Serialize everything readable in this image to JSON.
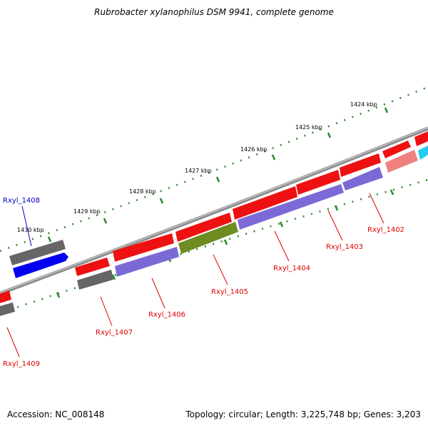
{
  "title": "Rubrobacter xylanophilus DSM 9941, complete genome",
  "footer": {
    "accession": "Accession: NC_008148",
    "summary": "Topology: circular; Length: 3,225,748 bp; Genes: 3,203"
  },
  "scale_labels": [
    "1424 kbp",
    "1425 kbp",
    "1426 kbp",
    "1427 kbp",
    "1428 kbp",
    "1429 kbp",
    "1430 kbp"
  ],
  "gene_labels": [
    {
      "text": "Rxyl_1402",
      "color": "#e00000"
    },
    {
      "text": "Rxyl_1403",
      "color": "#e00000"
    },
    {
      "text": "Rxyl_1404",
      "color": "#e00000"
    },
    {
      "text": "Rxyl_1405",
      "color": "#e00000"
    },
    {
      "text": "Rxyl_1406",
      "color": "#e00000"
    },
    {
      "text": "Rxyl_1407",
      "color": "#e00000"
    },
    {
      "text": "Rxyl_1408",
      "color": "#0000cc"
    },
    {
      "text": "Rxyl_1409",
      "color": "#e00000"
    }
  ],
  "colors": {
    "backbone": "#8c8c8c",
    "scale_ticks": "#2a8a2a",
    "cds": "#ee1111",
    "rna": "#7b6ad6",
    "gray_feature": "#666666",
    "blue_feature": "#0000ee",
    "olive_feature": "#6e8c22",
    "pink_feature": "#f08080",
    "cyan_feature": "#22ccee"
  }
}
